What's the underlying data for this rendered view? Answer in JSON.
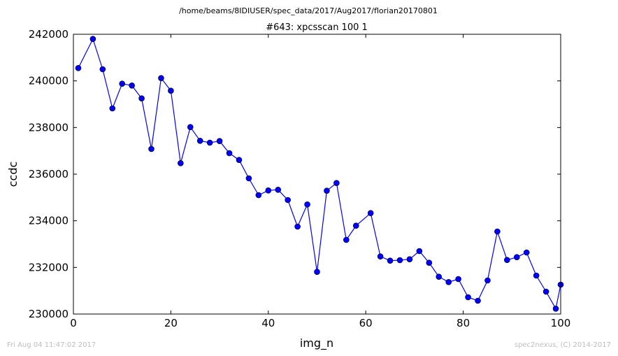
{
  "header": {
    "path": "/home/beams/8IDIUSER/spec_data/2017/Aug2017/florian20170801"
  },
  "footer": {
    "left": "Fri Aug 04 11:47:02 2017",
    "right": "spec2nexus, (C) 2014-2017"
  },
  "colors": {
    "series": "#0000ff",
    "axes": "#000000",
    "footer": "#bdbdbd"
  },
  "chart_data": {
    "type": "line",
    "title": "#643: xpcsscan 100 1",
    "xlabel": "img_n",
    "ylabel": "ccdc",
    "xlim": [
      0,
      100
    ],
    "ylim": [
      230000,
      242000
    ],
    "xticks": [
      0,
      20,
      40,
      60,
      80,
      100
    ],
    "yticks": [
      230000,
      232000,
      234000,
      236000,
      238000,
      240000,
      242000
    ],
    "grid": false,
    "legend": "none",
    "marker": "circle",
    "x": [
      1,
      4,
      6,
      8,
      10,
      12,
      14,
      16,
      18,
      20,
      22,
      24,
      26,
      28,
      30,
      32,
      34,
      36,
      38,
      40,
      42,
      44,
      46,
      48,
      50,
      52,
      54,
      56,
      58,
      61,
      63,
      65,
      67,
      69,
      71,
      73,
      75,
      77,
      79,
      81,
      83,
      85,
      87,
      89,
      91,
      93,
      95,
      97,
      99,
      100
    ],
    "y": [
      240550,
      241800,
      240500,
      238820,
      239880,
      239800,
      239250,
      237080,
      240120,
      239580,
      236470,
      238020,
      237430,
      237350,
      237420,
      236900,
      236610,
      235820,
      235100,
      235300,
      235330,
      234890,
      233750,
      234700,
      231810,
      235290,
      235620,
      233180,
      233790,
      234330,
      232470,
      232290,
      232310,
      232350,
      232700,
      232200,
      231600,
      231370,
      231500,
      230720,
      230570,
      231440,
      233540,
      232320,
      232440,
      232640,
      231650,
      230960,
      230230,
      231260
    ]
  }
}
